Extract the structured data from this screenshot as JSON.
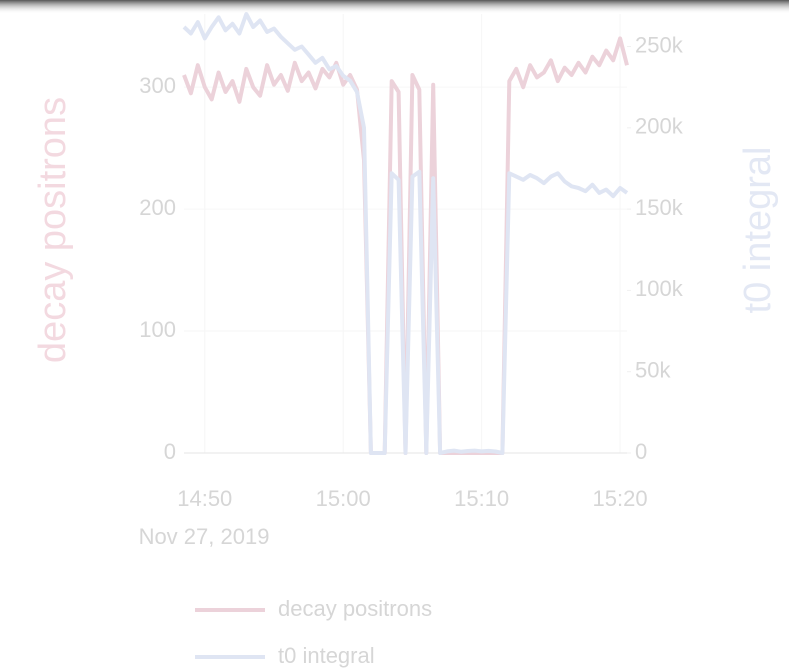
{
  "chart_data": {
    "type": "line",
    "y_label": "decay positrons",
    "y2_label": "t0 integral",
    "x_date_label": "Nov 27, 2019",
    "x": [
      "14:48:30",
      "14:49:00",
      "14:49:30",
      "14:50:00",
      "14:50:30",
      "14:51:00",
      "14:51:30",
      "14:52:00",
      "14:52:30",
      "14:53:00",
      "14:53:30",
      "14:54:00",
      "14:54:30",
      "14:55:00",
      "14:55:30",
      "14:56:00",
      "14:56:30",
      "14:57:00",
      "14:57:30",
      "14:58:00",
      "14:58:30",
      "14:59:00",
      "14:59:30",
      "15:00:00",
      "15:00:30",
      "15:01:00",
      "15:01:30",
      "15:02:00",
      "15:02:30",
      "15:03:00",
      "15:03:30",
      "15:04:00",
      "15:04:30",
      "15:05:00",
      "15:05:30",
      "15:06:00",
      "15:06:30",
      "15:07:00",
      "15:07:30",
      "15:08:00",
      "15:08:30",
      "15:09:00",
      "15:09:30",
      "15:10:00",
      "15:10:30",
      "15:11:00",
      "15:11:30",
      "15:12:00",
      "15:12:30",
      "15:13:00",
      "15:13:30",
      "15:14:00",
      "15:14:30",
      "15:15:00",
      "15:15:30",
      "15:16:00",
      "15:16:30",
      "15:17:00",
      "15:17:30",
      "15:18:00",
      "15:18:30",
      "15:19:00",
      "15:19:30",
      "15:20:00",
      "15:20:30"
    ],
    "series": [
      {
        "name": "decay positrons",
        "color": "#ecd2da",
        "axis": "y",
        "values": [
          310,
          295,
          318,
          300,
          290,
          312,
          296,
          305,
          288,
          315,
          300,
          293,
          318,
          302,
          310,
          297,
          320,
          305,
          312,
          299,
          315,
          308,
          320,
          302,
          310,
          298,
          240,
          0,
          0,
          0,
          305,
          296,
          0,
          310,
          298,
          0,
          302,
          0,
          0,
          0,
          0,
          0,
          0,
          0,
          0,
          0,
          0,
          305,
          315,
          300,
          318,
          308,
          312,
          322,
          305,
          316,
          310,
          320,
          312,
          325,
          318,
          330,
          322,
          340,
          318
        ]
      },
      {
        "name": "t0 integral",
        "color": "#dfe5f3",
        "axis": "y2",
        "values": [
          262000,
          258000,
          265000,
          255000,
          262000,
          268000,
          260000,
          264000,
          258000,
          270000,
          262000,
          266000,
          259000,
          261000,
          256000,
          252000,
          248000,
          250000,
          245000,
          240000,
          243000,
          236000,
          238000,
          232000,
          229000,
          222000,
          200000,
          0,
          0,
          0,
          172000,
          168000,
          0,
          170000,
          173000,
          0,
          169000,
          0,
          1000,
          1500,
          800,
          1200,
          1500,
          1000,
          1300,
          900,
          0,
          172000,
          170000,
          168000,
          171000,
          169000,
          166000,
          170000,
          172000,
          167000,
          164000,
          163000,
          161000,
          165000,
          160000,
          162000,
          158000,
          163000,
          160000
        ]
      }
    ],
    "xlim": [
      "14:48:30",
      "15:20:30"
    ],
    "xticks": [
      {
        "value": "14:50:00",
        "label": "14:50"
      },
      {
        "value": "15:00:00",
        "label": "15:00"
      },
      {
        "value": "15:10:00",
        "label": "15:10"
      },
      {
        "value": "15:20:00",
        "label": "15:20"
      }
    ],
    "ylim": [
      0,
      360
    ],
    "yticks": [
      0,
      100,
      200,
      300
    ],
    "y2lim": [
      0,
      270000
    ],
    "y2ticks": [
      {
        "value": 0,
        "label": "0"
      },
      {
        "value": 50000,
        "label": "50k"
      },
      {
        "value": 100000,
        "label": "100k"
      },
      {
        "value": 150000,
        "label": "150k"
      },
      {
        "value": 200000,
        "label": "200k"
      },
      {
        "value": 250000,
        "label": "250k"
      }
    ],
    "grid": true,
    "legend": "bottom"
  }
}
